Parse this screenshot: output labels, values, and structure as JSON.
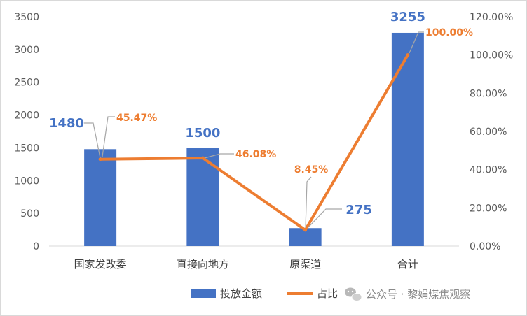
{
  "chart_data": {
    "type": "bar+line",
    "categories": [
      "国家发改委",
      "直接向地方",
      "原渠道",
      "合计"
    ],
    "series": [
      {
        "name": "投放金额",
        "type": "bar",
        "axis": "left",
        "values": [
          1480,
          1500,
          275,
          3255
        ],
        "labels": [
          "1480",
          "1500",
          "275",
          "3255"
        ],
        "color": "#4472c4"
      },
      {
        "name": "占比",
        "type": "line",
        "axis": "right",
        "values": [
          45.47,
          46.08,
          8.45,
          100.0
        ],
        "labels": [
          "45.47%",
          "46.08%",
          "8.45%",
          "100.00%"
        ],
        "color": "#ed7d31"
      }
    ],
    "y_left": {
      "min": 0,
      "max": 3500,
      "ticks": [
        0,
        500,
        1000,
        1500,
        2000,
        2500,
        3000,
        3500
      ],
      "tick_labels": [
        "0",
        "500",
        "1000",
        "1500",
        "2000",
        "2500",
        "3000",
        "3500"
      ]
    },
    "y_right": {
      "min": 0,
      "max": 120,
      "ticks": [
        0,
        20,
        40,
        60,
        80,
        100,
        120
      ],
      "tick_labels": [
        "0.00%",
        "20.00%",
        "40.00%",
        "60.00%",
        "80.00%",
        "100.00%",
        "120.00%"
      ]
    },
    "grid": false,
    "legend": "bottom"
  },
  "watermark": {
    "icon": "wechat-icon",
    "text": "公众号 · 黎娟煤焦观察"
  }
}
